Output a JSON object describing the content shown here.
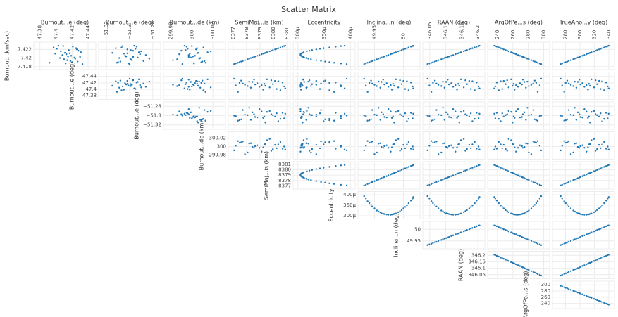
{
  "chart_data": {
    "type": "scatter_matrix",
    "title": "Scatter Matrix",
    "color": "#1f77b4",
    "grid": true,
    "variables": [
      {
        "label": "Burnout...km/sec)",
        "lim": [
          7.4178,
          7.4232
        ],
        "ticks": [
          7.418,
          7.42,
          7.422
        ],
        "values": [
          7.41873,
          7.42264,
          7.42,
          7.4217,
          7.41931,
          7.42102,
          7.42228,
          7.41972,
          7.42134,
          7.42035,
          7.42287,
          7.41904,
          7.4207,
          7.42201,
          7.41949,
          7.42246,
          7.42012,
          7.4212,
          7.41859,
          7.42156,
          7.42053,
          7.42215,
          7.41918,
          7.42089,
          7.42278,
          7.41985,
          7.42183,
          7.4189,
          7.42026,
          7.42111
        ]
      },
      {
        "label": "Burnout...e (deg)",
        "lim": [
          47.375,
          47.447
        ],
        "ticks": [
          47.38,
          47.4,
          47.42,
          47.44
        ],
        "values": [
          47.412,
          47.421,
          47.405,
          47.428,
          47.418,
          47.399,
          47.425,
          47.41,
          47.431,
          47.415,
          47.403,
          47.42,
          47.408,
          47.426,
          47.414,
          47.397,
          47.423,
          47.411,
          47.433,
          47.406,
          47.419,
          47.401,
          47.427,
          47.413,
          47.409,
          47.424,
          47.416,
          47.392,
          47.43,
          47.417
        ]
      },
      {
        "label": "Burnout...e (deg)",
        "lim": [
          -51.325,
          -51.275
        ],
        "ticks": [
          {
            "value": -51.32,
            "label": "−51.32"
          },
          {
            "value": -51.3,
            "label": "−51.3"
          },
          {
            "value": -51.28,
            "label": "−51.28"
          }
        ],
        "values": [
          -51.301,
          -51.294,
          -51.309,
          -51.297,
          -51.288,
          -51.305,
          -51.312,
          -51.299,
          -51.292,
          -51.303,
          -51.296,
          -51.31,
          -51.286,
          -51.302,
          -51.298,
          -51.307,
          -51.293,
          -51.315,
          -51.3,
          -51.29,
          -51.304,
          -51.295,
          -51.308,
          -51.291,
          -51.306,
          -51.283,
          -51.299,
          -51.311,
          -51.297,
          -51.302
        ]
      },
      {
        "label": "Burnout...de (km)",
        "lim": [
          299.975,
          300.03
        ],
        "ticks": [
          299.98,
          300,
          300.02
        ],
        "values": [
          300.002,
          299.995,
          300.008,
          299.99,
          300.012,
          299.998,
          300.005,
          299.986,
          300.015,
          300.001,
          299.993,
          300.009,
          299.997,
          300.004,
          299.982,
          300.011,
          299.999,
          300.006,
          299.991,
          300.018,
          300.003,
          299.996,
          300.01,
          299.988,
          300.0,
          300.007,
          299.994,
          300.013,
          299.997,
          300.005
        ]
      },
      {
        "label": "SemiMaj...is (km)",
        "lim": [
          8376.8,
          8381.1
        ],
        "ticks": [
          8377,
          8378,
          8379,
          8380,
          8381
        ],
        "values": [
          8377.2,
          8380.68,
          8378.32,
          8379.84,
          8377.72,
          8379.24,
          8380.36,
          8378.08,
          8379.52,
          8378.64,
          8380.88,
          8377.48,
          8378.96,
          8380.12,
          8377.88,
          8380.52,
          8378.44,
          8379.4,
          8377.08,
          8379.72,
          8378.8,
          8380.24,
          8377.6,
          8379.12,
          8380.8,
          8378.2,
          8379.96,
          8377.36,
          8378.56,
          8379.32
        ]
      },
      {
        "label": "Eccentricity",
        "lim": [
          0.000295,
          0.000405
        ],
        "ticks": [
          {
            "value": 0.0003,
            "label": "300μ"
          },
          {
            "value": 0.00035,
            "label": "350μ"
          },
          {
            "value": 0.0004,
            "label": "400μ"
          }
        ],
        "values": [
          0.000382,
          0.000372,
          0.000316,
          0.000322,
          0.000344,
          0.000306,
          0.000349,
          0.000325,
          0.000311,
          0.000308,
          0.000389,
          0.00036,
          0.000305,
          0.000335,
          0.000335,
          0.00036,
          0.000312,
          0.000309,
          0.000393,
          0.000317,
          0.000306,
          0.000342,
          0.000352,
          0.000305,
          0.000382,
          0.00032,
          0.000327,
          0.000369,
          0.00031,
          0.000307
        ]
      },
      {
        "label": "Inclina...n (deg)",
        "lim": [
          49.925,
          50.025
        ],
        "ticks": [
          49.95,
          50
        ],
        "values": [
          49.935,
          50.013,
          49.96,
          49.994,
          49.946,
          49.98,
          50.006,
          49.954,
          49.987,
          49.967,
          50.017,
          49.941,
          49.974,
          50.0,
          49.95,
          50.009,
          49.962,
          49.984,
          49.932,
          49.991,
          49.971,
          50.003,
          49.944,
          49.978,
          50.016,
          49.957,
          49.997,
          49.938,
          49.965,
          49.982
        ]
      },
      {
        "label": "RAAN (deg)",
        "lim": [
          346.035,
          346.215
        ],
        "ticks": [
          346.05,
          346.1,
          346.15,
          346.2
        ],
        "values": [
          346.049,
          346.196,
          346.096,
          346.161,
          346.071,
          346.135,
          346.183,
          346.086,
          346.147,
          346.11,
          346.205,
          346.06,
          346.123,
          346.173,
          346.077,
          346.19,
          346.101,
          346.142,
          346.043,
          346.156,
          346.117,
          346.178,
          346.066,
          346.13,
          346.202,
          346.091,
          346.166,
          346.055,
          346.106,
          346.139
        ]
      },
      {
        "label": "ArgOfPe...s (deg)",
        "lim": [
          230,
          305
        ],
        "ticks": [
          240,
          260,
          280,
          300
        ],
        "values": [
          294.8,
          239.1,
          276.9,
          252.6,
          286.5,
          262.2,
          244.2,
          280.7,
          257.7,
          271.8,
          235.9,
          290.3,
          266.6,
          248.1,
          283.9,
          241.7,
          275.0,
          259.6,
          296.7,
          254.5,
          269.2,
          246.2,
          288.4,
          264.1,
          237.2,
          278.8,
          250.6,
          292.2,
          273.0,
          260.9
        ]
      },
      {
        "label": "TrueAno...y (deg)",
        "lim": [
          265,
          345
        ],
        "ticks": [
          280,
          300,
          320,
          340
        ],
        "values": [
          275.5,
          336.4,
          295.1,
          321.7,
          284.6,
          311.2,
          330.8,
          290.9,
          316.1,
          300.7,
          339.9,
          280.4,
          306.3,
          326.6,
          287.4,
          333.6,
          297.2,
          314.0,
          273.4,
          319.6,
          303.5,
          328.7,
          282.5,
          309.1,
          338.5,
          293.0,
          323.8,
          278.3,
          299.3,
          312.6
        ]
      }
    ]
  }
}
